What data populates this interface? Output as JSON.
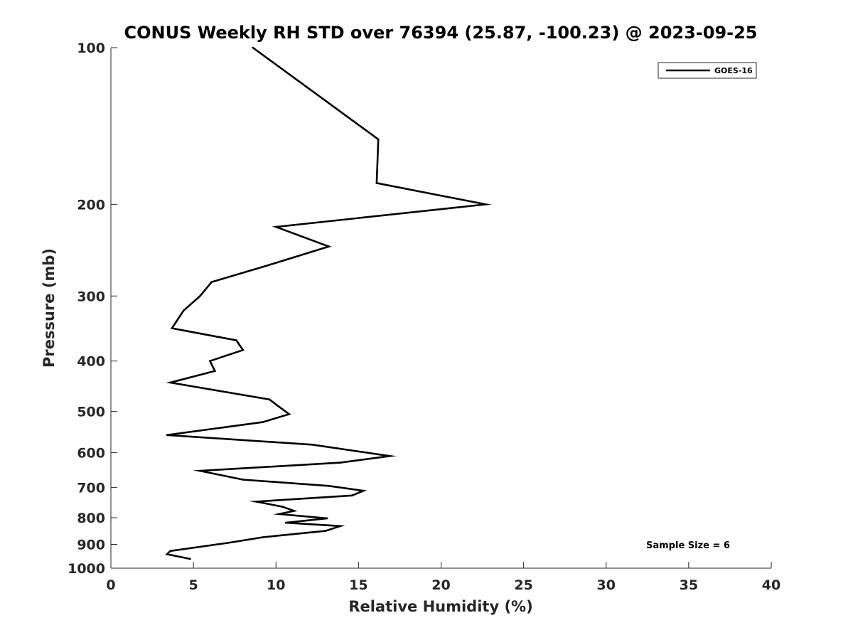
{
  "chart_data": {
    "type": "line",
    "title": "CONUS Weekly RH STD over 76394 (25.87, -100.23) @ 2023-09-25",
    "xlabel": "Relative Humidity (%)",
    "ylabel": "Pressure (mb)",
    "xlim": [
      0,
      40
    ],
    "ylim": [
      100,
      1000
    ],
    "y_scale": "log",
    "y_reversed": true,
    "grid": false,
    "legend_position": "top-right",
    "x_ticks": [
      "0",
      "5",
      "10",
      "15",
      "20",
      "25",
      "30",
      "35",
      "40"
    ],
    "y_ticks": [
      "100",
      "200",
      "300",
      "400",
      "500",
      "600",
      "700",
      "800",
      "900",
      "1000"
    ],
    "series": [
      {
        "name": "GOES-16",
        "color": "#000000",
        "x": [
          8.6,
          16.2,
          16.1,
          22.7,
          10.0,
          13.2,
          9.5,
          6.1,
          5.4,
          4.4,
          3.7,
          7.6,
          8.0,
          6.0,
          6.3,
          3.6,
          9.6,
          10.2,
          10.8,
          9.2,
          3.4,
          12.2,
          16.9,
          13.9,
          5.4,
          8.0,
          13.2,
          15.3,
          14.6,
          8.8,
          10.4,
          11.1,
          10.2,
          13.1,
          10.6,
          13.9,
          13.0,
          9.2,
          7.1,
          3.6,
          3.4,
          4.8
        ],
        "y": [
          100,
          150,
          182,
          200,
          221,
          241,
          262,
          282,
          300,
          320,
          346,
          365,
          381,
          400,
          418,
          440,
          474,
          490,
          506,
          524,
          555,
          579,
          609,
          627,
          650,
          676,
          695,
          710,
          725,
          745,
          762,
          776,
          787,
          802,
          818,
          830,
          848,
          872,
          894,
          927,
          940,
          960
        ]
      }
    ],
    "annotations": [
      "Sample Size = 6"
    ]
  }
}
